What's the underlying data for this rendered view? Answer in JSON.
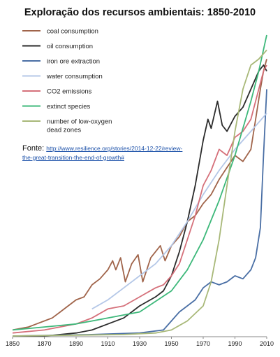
{
  "chart_data": {
    "type": "line",
    "title": "Exploração dos recursos ambientais: 1850-2010",
    "xlabel": "",
    "ylabel": "",
    "xlim": [
      1850,
      2010
    ],
    "x_ticks": [
      "1850",
      "1870",
      "1890",
      "1910",
      "1930",
      "1950",
      "1970",
      "1990",
      "2010"
    ],
    "grid": false,
    "legend_position": "top-left",
    "source_label": "Fonte:",
    "source_url": "http://www.resilience.org/stories/2014-12-22/review-the-great-transition-the-end-of-growth#",
    "series": [
      {
        "name": "coal consumption",
        "color": "#a0644a",
        "points": [
          [
            1850,
            0.02
          ],
          [
            1855,
            0.025
          ],
          [
            1860,
            0.03
          ],
          [
            1865,
            0.04
          ],
          [
            1870,
            0.05
          ],
          [
            1875,
            0.06
          ],
          [
            1880,
            0.08
          ],
          [
            1885,
            0.1
          ],
          [
            1890,
            0.12
          ],
          [
            1895,
            0.13
          ],
          [
            1900,
            0.17
          ],
          [
            1905,
            0.19
          ],
          [
            1910,
            0.22
          ],
          [
            1913,
            0.25
          ],
          [
            1915,
            0.22
          ],
          [
            1918,
            0.26
          ],
          [
            1921,
            0.18
          ],
          [
            1925,
            0.24
          ],
          [
            1929,
            0.27
          ],
          [
            1932,
            0.18
          ],
          [
            1937,
            0.26
          ],
          [
            1940,
            0.28
          ],
          [
            1943,
            0.3
          ],
          [
            1946,
            0.25
          ],
          [
            1950,
            0.3
          ],
          [
            1955,
            0.33
          ],
          [
            1960,
            0.38
          ],
          [
            1965,
            0.4
          ],
          [
            1970,
            0.44
          ],
          [
            1975,
            0.47
          ],
          [
            1980,
            0.52
          ],
          [
            1985,
            0.56
          ],
          [
            1990,
            0.6
          ],
          [
            1995,
            0.58
          ],
          [
            2000,
            0.62
          ],
          [
            2003,
            0.72
          ],
          [
            2006,
            0.82
          ],
          [
            2008,
            0.88
          ],
          [
            2010,
            0.92
          ]
        ]
      },
      {
        "name": "oil consumption",
        "color": "#2b2b2b",
        "points": [
          [
            1850,
            0
          ],
          [
            1870,
            0
          ],
          [
            1880,
            0.005
          ],
          [
            1890,
            0.01
          ],
          [
            1900,
            0.02
          ],
          [
            1910,
            0.04
          ],
          [
            1920,
            0.06
          ],
          [
            1930,
            0.1
          ],
          [
            1940,
            0.13
          ],
          [
            1945,
            0.15
          ],
          [
            1950,
            0.2
          ],
          [
            1955,
            0.28
          ],
          [
            1960,
            0.38
          ],
          [
            1965,
            0.5
          ],
          [
            1970,
            0.65
          ],
          [
            1973,
            0.72
          ],
          [
            1975,
            0.69
          ],
          [
            1979,
            0.78
          ],
          [
            1982,
            0.7
          ],
          [
            1985,
            0.68
          ],
          [
            1990,
            0.73
          ],
          [
            1995,
            0.76
          ],
          [
            2000,
            0.82
          ],
          [
            2005,
            0.88
          ],
          [
            2008,
            0.9
          ],
          [
            2010,
            0.88
          ]
        ]
      },
      {
        "name": "iron ore extraction",
        "color": "#4a6fa5",
        "points": [
          [
            1850,
            0
          ],
          [
            1900,
            0.005
          ],
          [
            1930,
            0.01
          ],
          [
            1945,
            0.02
          ],
          [
            1950,
            0.05
          ],
          [
            1955,
            0.08
          ],
          [
            1960,
            0.1
          ],
          [
            1965,
            0.12
          ],
          [
            1970,
            0.16
          ],
          [
            1975,
            0.18
          ],
          [
            1980,
            0.17
          ],
          [
            1985,
            0.18
          ],
          [
            1990,
            0.2
          ],
          [
            1995,
            0.19
          ],
          [
            2000,
            0.22
          ],
          [
            2003,
            0.26
          ],
          [
            2006,
            0.36
          ],
          [
            2008,
            0.6
          ],
          [
            2010,
            0.82
          ]
        ]
      },
      {
        "name": "water consumption",
        "color": "#b4c7e7",
        "points": [
          [
            1900,
            0.09
          ],
          [
            1910,
            0.12
          ],
          [
            1920,
            0.16
          ],
          [
            1930,
            0.2
          ],
          [
            1940,
            0.24
          ],
          [
            1950,
            0.3
          ],
          [
            1960,
            0.38
          ],
          [
            1970,
            0.47
          ],
          [
            1980,
            0.55
          ],
          [
            1990,
            0.62
          ],
          [
            2000,
            0.68
          ],
          [
            2010,
            0.74
          ]
        ]
      },
      {
        "name": "CO2 emissions",
        "color": "#d5707a",
        "points": [
          [
            1850,
            0.01
          ],
          [
            1870,
            0.02
          ],
          [
            1890,
            0.04
          ],
          [
            1900,
            0.06
          ],
          [
            1910,
            0.09
          ],
          [
            1920,
            0.1
          ],
          [
            1930,
            0.13
          ],
          [
            1940,
            0.16
          ],
          [
            1945,
            0.17
          ],
          [
            1950,
            0.2
          ],
          [
            1955,
            0.24
          ],
          [
            1960,
            0.32
          ],
          [
            1965,
            0.4
          ],
          [
            1970,
            0.5
          ],
          [
            1975,
            0.55
          ],
          [
            1980,
            0.62
          ],
          [
            1985,
            0.6
          ],
          [
            1990,
            0.66
          ],
          [
            1995,
            0.68
          ],
          [
            2000,
            0.72
          ],
          [
            2005,
            0.82
          ],
          [
            2008,
            0.88
          ],
          [
            2010,
            0.9
          ]
        ]
      },
      {
        "name": "extinct species",
        "color": "#3db87a",
        "points": [
          [
            1850,
            0.02
          ],
          [
            1870,
            0.03
          ],
          [
            1890,
            0.04
          ],
          [
            1910,
            0.06
          ],
          [
            1930,
            0.08
          ],
          [
            1950,
            0.15
          ],
          [
            1960,
            0.22
          ],
          [
            1970,
            0.32
          ],
          [
            1980,
            0.45
          ],
          [
            1990,
            0.6
          ],
          [
            2000,
            0.78
          ],
          [
            2005,
            0.88
          ],
          [
            2010,
            1.0
          ]
        ]
      },
      {
        "name": "number of low-oxygen dead zones",
        "color": "#a8b878",
        "points": [
          [
            1850,
            0
          ],
          [
            1920,
            0.005
          ],
          [
            1940,
            0.01
          ],
          [
            1950,
            0.02
          ],
          [
            1960,
            0.05
          ],
          [
            1970,
            0.1
          ],
          [
            1975,
            0.18
          ],
          [
            1980,
            0.32
          ],
          [
            1985,
            0.5
          ],
          [
            1990,
            0.68
          ],
          [
            1995,
            0.82
          ],
          [
            2000,
            0.9
          ],
          [
            2005,
            0.92
          ],
          [
            2010,
            0.95
          ]
        ]
      }
    ]
  }
}
